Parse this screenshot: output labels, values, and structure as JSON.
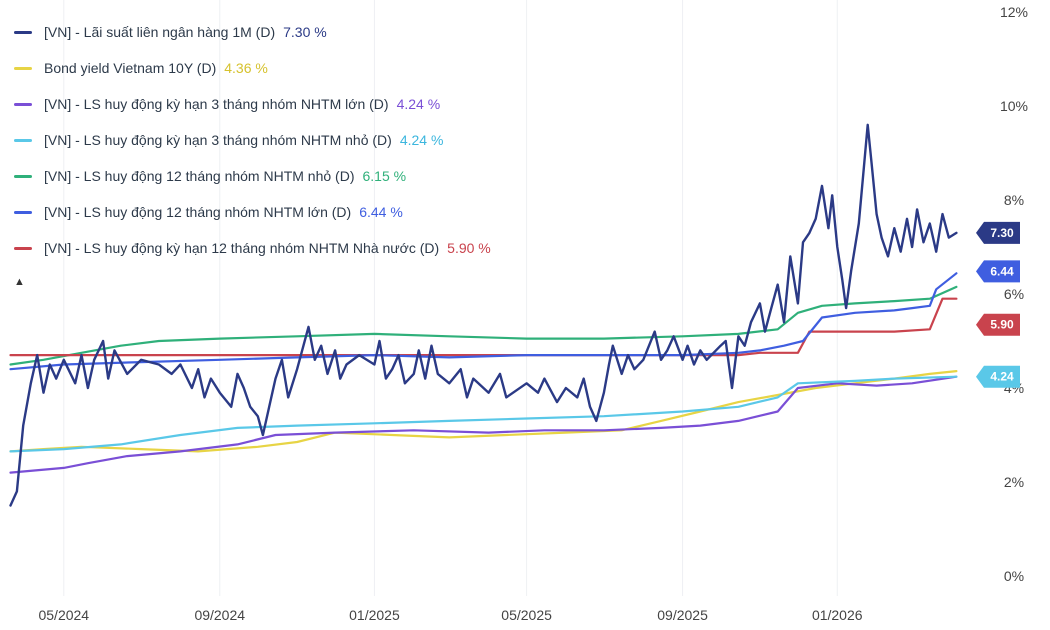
{
  "chart_data": {
    "type": "line",
    "x_ticks": [
      "05/2024",
      "09/2024",
      "01/2025",
      "05/2025",
      "09/2025",
      "01/2026"
    ],
    "y_ticks": [
      "12%",
      "10%",
      "8%",
      "6%",
      "4%",
      "2%",
      "0%"
    ],
    "ylim": [
      0,
      12
    ],
    "grid": "vertical",
    "legend_position": "top-left",
    "series": [
      {
        "name": "[VN] - Lãi suất liên ngân hàng 1M (D)",
        "last_label": "7.30 %",
        "tag": "7.30",
        "color": "#2b3a86",
        "tag_color": "#2b3a86",
        "points": [
          [
            "2024-03-20",
            1.5
          ],
          [
            "2024-03-25",
            1.8
          ],
          [
            "2024-03-30",
            3.2
          ],
          [
            "2024-04-05",
            4.1
          ],
          [
            "2024-04-10",
            4.7
          ],
          [
            "2024-04-15",
            3.9
          ],
          [
            "2024-04-20",
            4.5
          ],
          [
            "2024-04-25",
            4.2
          ],
          [
            "2024-05-01",
            4.6
          ],
          [
            "2024-05-10",
            4.1
          ],
          [
            "2024-05-15",
            4.7
          ],
          [
            "2024-05-20",
            4.0
          ],
          [
            "2024-05-25",
            4.6
          ],
          [
            "2024-06-01",
            5.0
          ],
          [
            "2024-06-05",
            4.2
          ],
          [
            "2024-06-10",
            4.8
          ],
          [
            "2024-06-20",
            4.3
          ],
          [
            "2024-07-01",
            4.6
          ],
          [
            "2024-07-15",
            4.5
          ],
          [
            "2024-07-25",
            4.3
          ],
          [
            "2024-08-01",
            4.5
          ],
          [
            "2024-08-10",
            4.0
          ],
          [
            "2024-08-15",
            4.4
          ],
          [
            "2024-08-20",
            3.8
          ],
          [
            "2024-08-25",
            4.2
          ],
          [
            "2024-09-01",
            3.9
          ],
          [
            "2024-09-10",
            3.6
          ],
          [
            "2024-09-15",
            4.3
          ],
          [
            "2024-09-20",
            4.0
          ],
          [
            "2024-09-25",
            3.6
          ],
          [
            "2024-10-01",
            3.4
          ],
          [
            "2024-10-05",
            3.0
          ],
          [
            "2024-10-10",
            3.6
          ],
          [
            "2024-10-15",
            4.2
          ],
          [
            "2024-10-20",
            4.6
          ],
          [
            "2024-10-25",
            3.8
          ],
          [
            "2024-11-01",
            4.4
          ],
          [
            "2024-11-10",
            5.3
          ],
          [
            "2024-11-15",
            4.6
          ],
          [
            "2024-11-20",
            4.9
          ],
          [
            "2024-11-25",
            4.3
          ],
          [
            "2024-12-01",
            4.8
          ],
          [
            "2024-12-05",
            4.2
          ],
          [
            "2024-12-10",
            4.5
          ],
          [
            "2024-12-20",
            4.7
          ],
          [
            "2025-01-01",
            4.5
          ],
          [
            "2025-01-05",
            5.0
          ],
          [
            "2025-01-10",
            4.2
          ],
          [
            "2025-01-15",
            4.4
          ],
          [
            "2025-01-20",
            4.7
          ],
          [
            "2025-01-25",
            4.1
          ],
          [
            "2025-02-01",
            4.3
          ],
          [
            "2025-02-05",
            4.8
          ],
          [
            "2025-02-10",
            4.2
          ],
          [
            "2025-02-15",
            4.9
          ],
          [
            "2025-02-20",
            4.3
          ],
          [
            "2025-03-01",
            4.1
          ],
          [
            "2025-03-10",
            4.4
          ],
          [
            "2025-03-15",
            3.8
          ],
          [
            "2025-03-20",
            4.2
          ],
          [
            "2025-04-01",
            3.9
          ],
          [
            "2025-04-10",
            4.3
          ],
          [
            "2025-04-15",
            3.8
          ],
          [
            "2025-05-01",
            4.1
          ],
          [
            "2025-05-10",
            3.9
          ],
          [
            "2025-05-15",
            4.2
          ],
          [
            "2025-05-25",
            3.7
          ],
          [
            "2025-06-01",
            4.0
          ],
          [
            "2025-06-10",
            3.8
          ],
          [
            "2025-06-15",
            4.2
          ],
          [
            "2025-06-20",
            3.6
          ],
          [
            "2025-06-25",
            3.3
          ],
          [
            "2025-07-01",
            3.9
          ],
          [
            "2025-07-05",
            4.5
          ],
          [
            "2025-07-08",
            4.9
          ],
          [
            "2025-07-15",
            4.3
          ],
          [
            "2025-07-20",
            4.7
          ],
          [
            "2025-07-25",
            4.4
          ],
          [
            "2025-08-01",
            4.6
          ],
          [
            "2025-08-10",
            5.2
          ],
          [
            "2025-08-15",
            4.6
          ],
          [
            "2025-08-20",
            4.8
          ],
          [
            "2025-08-25",
            5.1
          ],
          [
            "2025-09-01",
            4.6
          ],
          [
            "2025-09-05",
            4.9
          ],
          [
            "2025-09-10",
            4.5
          ],
          [
            "2025-09-15",
            4.8
          ],
          [
            "2025-09-20",
            4.6
          ],
          [
            "2025-10-01",
            4.9
          ],
          [
            "2025-10-05",
            5.0
          ],
          [
            "2025-10-10",
            4.0
          ],
          [
            "2025-10-15",
            5.1
          ],
          [
            "2025-10-20",
            4.9
          ],
          [
            "2025-10-25",
            5.4
          ],
          [
            "2025-11-01",
            5.8
          ],
          [
            "2025-11-05",
            5.2
          ],
          [
            "2025-11-10",
            5.7
          ],
          [
            "2025-11-15",
            6.2
          ],
          [
            "2025-11-20",
            5.4
          ],
          [
            "2025-11-25",
            6.8
          ],
          [
            "2025-12-01",
            5.8
          ],
          [
            "2025-12-05",
            7.1
          ],
          [
            "2025-12-10",
            7.3
          ],
          [
            "2025-12-15",
            7.6
          ],
          [
            "2025-12-20",
            8.3
          ],
          [
            "2025-12-25",
            7.4
          ],
          [
            "2025-12-28",
            8.1
          ],
          [
            "2026-01-01",
            7.0
          ],
          [
            "2026-01-05",
            6.3
          ],
          [
            "2026-01-08",
            5.7
          ],
          [
            "2026-01-12",
            6.5
          ],
          [
            "2026-01-18",
            7.5
          ],
          [
            "2026-01-22",
            8.7
          ],
          [
            "2026-01-25",
            9.6
          ],
          [
            "2026-01-28",
            8.8
          ],
          [
            "2026-02-01",
            7.7
          ],
          [
            "2026-02-05",
            7.2
          ],
          [
            "2026-02-10",
            6.8
          ],
          [
            "2026-02-15",
            7.4
          ],
          [
            "2026-02-20",
            6.9
          ],
          [
            "2026-02-25",
            7.6
          ],
          [
            "2026-03-01",
            7.0
          ],
          [
            "2026-03-05",
            7.8
          ],
          [
            "2026-03-10",
            7.1
          ],
          [
            "2026-03-15",
            7.5
          ],
          [
            "2026-03-20",
            6.9
          ],
          [
            "2026-03-25",
            7.7
          ],
          [
            "2026-03-30",
            7.2
          ],
          [
            "2026-04-05",
            7.3
          ]
        ]
      },
      {
        "name": "Bond yield Vietnam 10Y (D)",
        "last_label": "4.36 %",
        "tag": "",
        "color": "#e7d445",
        "tag_color": "#e7d445",
        "points": [
          [
            "2024-03-20",
            2.65
          ],
          [
            "2024-04-15",
            2.7
          ],
          [
            "2024-05-15",
            2.75
          ],
          [
            "2024-07-01",
            2.7
          ],
          [
            "2024-08-15",
            2.65
          ],
          [
            "2024-10-01",
            2.75
          ],
          [
            "2024-11-01",
            2.85
          ],
          [
            "2024-12-01",
            3.05
          ],
          [
            "2025-01-15",
            3.0
          ],
          [
            "2025-03-01",
            2.95
          ],
          [
            "2025-04-15",
            3.0
          ],
          [
            "2025-06-01",
            3.05
          ],
          [
            "2025-07-15",
            3.1
          ],
          [
            "2025-08-15",
            3.3
          ],
          [
            "2025-09-15",
            3.5
          ],
          [
            "2025-10-15",
            3.7
          ],
          [
            "2025-11-15",
            3.85
          ],
          [
            "2025-12-15",
            4.0
          ],
          [
            "2026-01-15",
            4.1
          ],
          [
            "2026-02-15",
            4.2
          ],
          [
            "2026-03-15",
            4.3
          ],
          [
            "2026-04-05",
            4.36
          ]
        ]
      },
      {
        "name": "[VN] - LS huy động kỳ hạn 3 tháng nhóm NHTM lớn (D)",
        "last_label": "4.24 %",
        "tag": "",
        "color": "#7a4fd6",
        "tag_color": "#7a4fd6",
        "points": [
          [
            "2024-03-20",
            2.2
          ],
          [
            "2024-05-01",
            2.3
          ],
          [
            "2024-05-20",
            2.4
          ],
          [
            "2024-06-20",
            2.55
          ],
          [
            "2024-08-01",
            2.65
          ],
          [
            "2024-09-15",
            2.8
          ],
          [
            "2024-10-15",
            3.0
          ],
          [
            "2024-12-01",
            3.05
          ],
          [
            "2025-02-01",
            3.1
          ],
          [
            "2025-04-01",
            3.05
          ],
          [
            "2025-05-15",
            3.1
          ],
          [
            "2025-07-01",
            3.1
          ],
          [
            "2025-08-15",
            3.15
          ],
          [
            "2025-09-15",
            3.2
          ],
          [
            "2025-10-15",
            3.3
          ],
          [
            "2025-11-15",
            3.5
          ],
          [
            "2025-12-01",
            4.0
          ],
          [
            "2026-01-01",
            4.1
          ],
          [
            "2026-02-01",
            4.05
          ],
          [
            "2026-03-01",
            4.1
          ],
          [
            "2026-04-05",
            4.24
          ]
        ]
      },
      {
        "name": "[VN] - LS huy động kỳ hạn 3 tháng nhóm NHTM nhỏ (D)",
        "last_label": "4.24 %",
        "tag": "4.24",
        "color": "#5ac8e8",
        "tag_color": "#5ac8e8",
        "points": [
          [
            "2024-03-20",
            2.65
          ],
          [
            "2024-05-01",
            2.7
          ],
          [
            "2024-06-15",
            2.8
          ],
          [
            "2024-08-01",
            3.0
          ],
          [
            "2024-09-15",
            3.15
          ],
          [
            "2024-11-01",
            3.2
          ],
          [
            "2025-01-01",
            3.25
          ],
          [
            "2025-03-01",
            3.3
          ],
          [
            "2025-05-01",
            3.35
          ],
          [
            "2025-07-01",
            3.4
          ],
          [
            "2025-09-01",
            3.5
          ],
          [
            "2025-10-15",
            3.6
          ],
          [
            "2025-11-15",
            3.8
          ],
          [
            "2025-12-01",
            4.1
          ],
          [
            "2026-01-15",
            4.15
          ],
          [
            "2026-02-15",
            4.2
          ],
          [
            "2026-04-05",
            4.24
          ]
        ]
      },
      {
        "name": "[VN] - LS huy động 12 tháng nhóm NHTM nhỏ (D)",
        "last_label": "6.15 %",
        "tag": "",
        "color": "#2fb07a",
        "tag_color": "#2fb07a",
        "points": [
          [
            "2024-03-20",
            4.5
          ],
          [
            "2024-04-15",
            4.6
          ],
          [
            "2024-05-15",
            4.75
          ],
          [
            "2024-06-15",
            4.9
          ],
          [
            "2024-07-15",
            5.0
          ],
          [
            "2024-09-01",
            5.05
          ],
          [
            "2024-11-01",
            5.1
          ],
          [
            "2025-01-01",
            5.15
          ],
          [
            "2025-03-01",
            5.1
          ],
          [
            "2025-05-01",
            5.05
          ],
          [
            "2025-07-01",
            5.05
          ],
          [
            "2025-09-01",
            5.1
          ],
          [
            "2025-10-15",
            5.15
          ],
          [
            "2025-11-15",
            5.25
          ],
          [
            "2025-12-01",
            5.6
          ],
          [
            "2025-12-20",
            5.75
          ],
          [
            "2026-01-15",
            5.8
          ],
          [
            "2026-02-15",
            5.85
          ],
          [
            "2026-03-15",
            5.9
          ],
          [
            "2026-04-05",
            6.15
          ]
        ]
      },
      {
        "name": "[VN] - LS huy động 12 tháng nhóm NHTM lớn (D)",
        "last_label": "6.44 %",
        "tag": "6.44",
        "color": "#3f5ee0",
        "tag_color": "#3f5ee0",
        "points": [
          [
            "2024-03-20",
            4.4
          ],
          [
            "2024-05-01",
            4.5
          ],
          [
            "2024-07-01",
            4.55
          ],
          [
            "2024-09-01",
            4.6
          ],
          [
            "2024-11-01",
            4.65
          ],
          [
            "2025-01-01",
            4.7
          ],
          [
            "2025-03-01",
            4.65
          ],
          [
            "2025-05-01",
            4.7
          ],
          [
            "2025-07-01",
            4.7
          ],
          [
            "2025-09-01",
            4.7
          ],
          [
            "2025-10-15",
            4.75
          ],
          [
            "2025-11-01",
            4.8
          ],
          [
            "2025-11-20",
            4.9
          ],
          [
            "2025-12-05",
            5.0
          ],
          [
            "2025-12-20",
            5.5
          ],
          [
            "2026-01-15",
            5.6
          ],
          [
            "2026-02-15",
            5.65
          ],
          [
            "2026-03-01",
            5.7
          ],
          [
            "2026-03-15",
            5.75
          ],
          [
            "2026-03-20",
            6.1
          ],
          [
            "2026-04-05",
            6.44
          ]
        ]
      },
      {
        "name": "[VN] - LS huy động kỳ hạn 12 tháng nhóm NHTM Nhà nước (D)",
        "last_label": "5.90 %",
        "tag": "5.90",
        "color": "#c9434d",
        "tag_color": "#c9434d",
        "points": [
          [
            "2024-03-20",
            4.7
          ],
          [
            "2024-05-01",
            4.7
          ],
          [
            "2024-08-01",
            4.7
          ],
          [
            "2024-11-01",
            4.7
          ],
          [
            "2025-02-01",
            4.7
          ],
          [
            "2025-05-01",
            4.7
          ],
          [
            "2025-08-01",
            4.7
          ],
          [
            "2025-10-15",
            4.7
          ],
          [
            "2025-11-01",
            4.75
          ],
          [
            "2025-12-01",
            4.75
          ],
          [
            "2025-12-10",
            5.2
          ],
          [
            "2026-01-15",
            5.2
          ],
          [
            "2026-02-15",
            5.2
          ],
          [
            "2026-03-15",
            5.25
          ],
          [
            "2026-03-25",
            5.9
          ],
          [
            "2026-04-05",
            5.9
          ]
        ]
      }
    ]
  }
}
